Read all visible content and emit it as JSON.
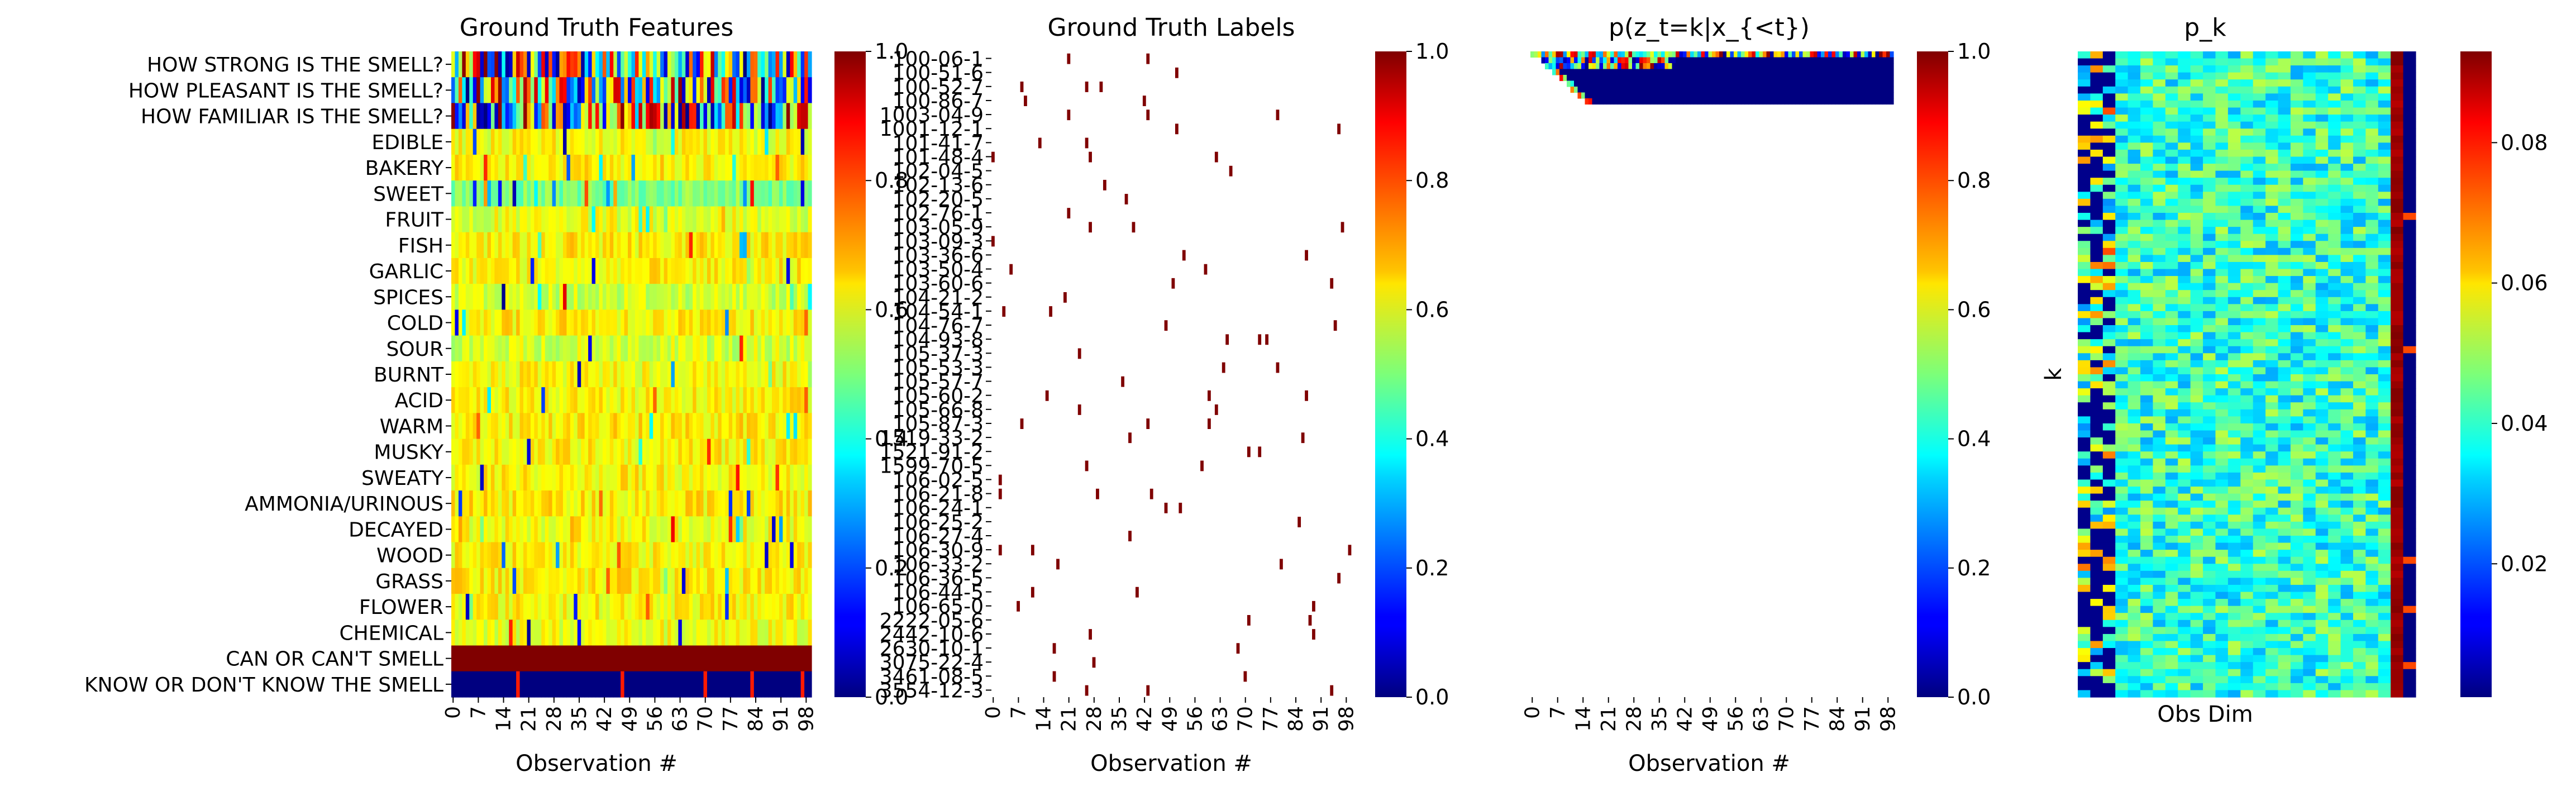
{
  "colormap": "jet",
  "chart_data": [
    {
      "type": "heatmap",
      "title": "Ground Truth Features",
      "xlabel": "Observation #",
      "ylabel": "",
      "x_ticks": [
        "0",
        "7",
        "14",
        "21",
        "28",
        "35",
        "42",
        "49",
        "56",
        "63",
        "70",
        "77",
        "84",
        "91",
        "98"
      ],
      "y_labels": [
        "HOW STRONG IS THE SMELL?",
        "HOW PLEASANT IS THE SMELL?",
        "HOW FAMILIAR IS THE SMELL?",
        "EDIBLE",
        "BAKERY",
        "SWEET",
        "FRUIT",
        "FISH",
        "GARLIC",
        "SPICES",
        "COLD",
        "SOUR",
        "BURNT",
        "ACID",
        "WARM",
        "MUSKY",
        "SWEATY",
        "AMMONIA/URINOUS",
        "DECAYED",
        "WOOD",
        "GRASS",
        "FLOWER",
        "CHEMICAL",
        "CAN OR CAN'T SMELL",
        "KNOW OR DON'T KNOW THE SMELL"
      ],
      "colorbar": {
        "min": 0,
        "max": 1,
        "ticks": [
          "0.0",
          "0.2",
          "0.4",
          "0.6",
          "0.8",
          "1.0"
        ]
      },
      "row_means": [
        0.55,
        0.55,
        0.5,
        0.62,
        0.64,
        0.5,
        0.6,
        0.64,
        0.63,
        0.58,
        0.64,
        0.58,
        0.62,
        0.63,
        0.64,
        0.63,
        0.63,
        0.64,
        0.62,
        0.63,
        0.64,
        0.63,
        0.61,
        1.0,
        0.0
      ]
    },
    {
      "type": "heatmap",
      "title": "Ground Truth Labels",
      "xlabel": "Observation #",
      "ylabel": "",
      "x_ticks": [
        "0",
        "7",
        "14",
        "21",
        "28",
        "35",
        "42",
        "49",
        "56",
        "63",
        "70",
        "77",
        "84",
        "91",
        "98"
      ],
      "y_labels": [
        "100-06-1",
        "100-51-6",
        "100-52-7",
        "100-86-7",
        "1003-04-9",
        "1001-12-1",
        "101-41-7",
        "101-48-4",
        "102-04-5",
        "102-13-6",
        "102-20-5",
        "102-76-1",
        "103-05-9",
        "103-09-3",
        "103-36-6",
        "103-50-4",
        "103-60-6",
        "104-21-2",
        "104-54-1",
        "104-76-7",
        "104-93-8",
        "105-37-3",
        "105-53-3",
        "105-57-7",
        "105-60-2",
        "105-66-8",
        "105-87-3",
        "1519-33-2",
        "1521-91-2",
        "1599-70-5",
        "106-02-5",
        "106-21-8",
        "106-24-1",
        "106-25-2",
        "106-27-4",
        "106-30-9",
        "106-33-2",
        "106-36-5",
        "106-44-5",
        "106-65-0",
        "2222-05-6",
        "2442-10-6",
        "2630-10-1",
        "3075-22-4",
        "3461-08-5",
        "3554-12-3"
      ],
      "colorbar": {
        "min": 0,
        "max": 1,
        "ticks": [
          "0.0",
          "0.2",
          "0.4",
          "0.6",
          "0.8",
          "1.0"
        ]
      }
    },
    {
      "type": "heatmap",
      "title": "p(z_t=k|x_{<t})",
      "xlabel": "Observation #",
      "ylabel": "",
      "x_ticks": [
        "0",
        "7",
        "14",
        "21",
        "28",
        "35",
        "42",
        "49",
        "56",
        "63",
        "70",
        "77",
        "84",
        "91",
        "98"
      ],
      "colorbar": {
        "min": 0,
        "max": 1,
        "ticks": [
          "0.0",
          "0.2",
          "0.4",
          "0.6",
          "0.8",
          "1.0"
        ]
      }
    },
    {
      "type": "heatmap",
      "title": "p_k",
      "xlabel": "Obs Dim",
      "ylabel": "k",
      "colorbar": {
        "min": 0.001,
        "max": 0.093,
        "ticks": [
          "0.02",
          "0.04",
          "0.06",
          "0.08"
        ]
      }
    }
  ]
}
